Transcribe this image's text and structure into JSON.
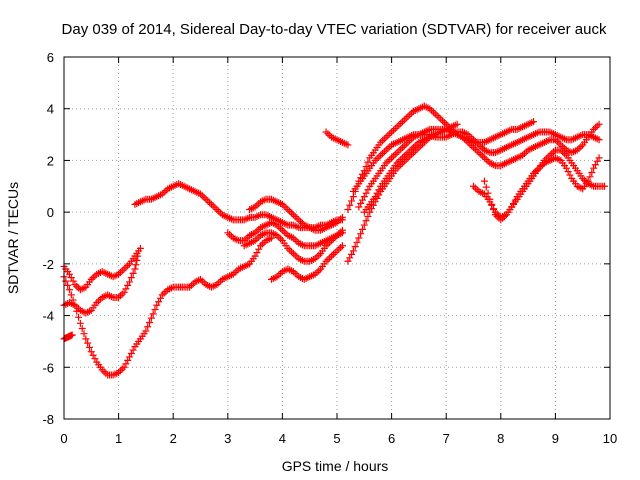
{
  "chart_data": {
    "type": "scatter",
    "title": "Day 039 of 2014, Sidereal Day-to-day VTEC variation (SDTVAR) for receiver auck",
    "xlabel": "GPS time / hours",
    "ylabel": "SDTVAR / TECUs",
    "xlim": [
      0,
      10
    ],
    "ylim": [
      -8,
      6
    ],
    "xticks": [
      0,
      1,
      2,
      3,
      4,
      5,
      6,
      7,
      8,
      9,
      10
    ],
    "yticks": [
      -8,
      -6,
      -4,
      -2,
      0,
      2,
      4,
      6
    ],
    "grid": true,
    "marker": "plus",
    "color": "#ff0000",
    "series": [
      {
        "x": [
          0.0,
          0.1,
          0.2,
          0.3,
          0.4,
          0.5,
          0.6,
          0.7,
          0.8,
          0.9,
          1.0,
          1.1,
          1.2,
          1.3,
          1.4
        ],
        "y": [
          -2.1,
          -2.4,
          -2.8,
          -3.0,
          -2.9,
          -2.6,
          -2.4,
          -2.3,
          -2.4,
          -2.5,
          -2.4,
          -2.2,
          -2.0,
          -1.7,
          -1.4
        ]
      },
      {
        "x": [
          0.0,
          0.1,
          0.2,
          0.3,
          0.4,
          0.5,
          0.6,
          0.7,
          0.8,
          0.9,
          1.0,
          1.1,
          1.2,
          1.3,
          1.35
        ],
        "y": [
          -3.6,
          -3.5,
          -3.6,
          -3.8,
          -3.9,
          -3.8,
          -3.5,
          -3.3,
          -3.2,
          -3.3,
          -3.3,
          -3.1,
          -2.7,
          -2.2,
          -1.7
        ]
      },
      {
        "x": [
          0.0,
          0.05,
          0.1,
          0.15
        ],
        "y": [
          -4.9,
          -4.85,
          -4.8,
          -4.75
        ]
      },
      {
        "x": [
          0.0,
          0.1,
          0.2,
          0.3,
          0.4,
          0.5,
          0.6,
          0.7,
          0.8,
          0.9,
          1.0,
          1.1,
          1.2,
          1.3,
          1.4,
          1.5,
          1.6,
          1.7,
          1.8,
          1.9,
          2.0,
          2.1,
          2.2,
          2.3,
          2.4,
          2.5,
          2.6,
          2.7,
          2.8,
          2.9,
          3.0,
          3.1,
          3.2,
          3.3,
          3.4,
          3.5,
          3.6,
          3.7,
          3.8
        ],
        "y": [
          -2.5,
          -3.0,
          -3.6,
          -4.3,
          -4.9,
          -5.4,
          -5.8,
          -6.1,
          -6.3,
          -6.3,
          -6.2,
          -6.0,
          -5.6,
          -5.2,
          -4.9,
          -4.6,
          -4.1,
          -3.6,
          -3.2,
          -3.0,
          -2.9,
          -2.9,
          -2.9,
          -2.9,
          -2.7,
          -2.6,
          -2.8,
          -2.9,
          -2.8,
          -2.6,
          -2.5,
          -2.4,
          -2.2,
          -2.1,
          -2.0,
          -1.7,
          -1.3,
          -1.1,
          -1.0
        ]
      },
      {
        "x": [
          1.3,
          1.4,
          1.5,
          1.6,
          1.7,
          1.8,
          1.9,
          2.0,
          2.1,
          2.2,
          2.3,
          2.4,
          2.5,
          2.6,
          2.7,
          2.8,
          2.9,
          3.0,
          3.1,
          3.2,
          3.3,
          3.4,
          3.5,
          3.6,
          3.7,
          3.8,
          3.9,
          4.0,
          4.1,
          4.2,
          4.3,
          4.4,
          4.5,
          4.6,
          4.7,
          4.8,
          4.9,
          5.0,
          5.1
        ],
        "y": [
          0.3,
          0.4,
          0.5,
          0.5,
          0.6,
          0.7,
          0.9,
          1.0,
          1.1,
          1.0,
          0.9,
          0.8,
          0.7,
          0.5,
          0.3,
          0.1,
          -0.1,
          -0.2,
          -0.3,
          -0.3,
          -0.3,
          -0.2,
          -0.2,
          -0.1,
          -0.1,
          -0.2,
          -0.3,
          -0.4,
          -0.5,
          -0.5,
          -0.6,
          -0.6,
          -0.6,
          -0.6,
          -0.5,
          -0.5,
          -0.4,
          -0.3,
          -0.3
        ]
      },
      {
        "x": [
          3.0,
          3.1,
          3.2,
          3.3,
          3.4,
          3.5,
          3.6,
          3.7,
          3.8,
          3.9,
          4.0,
          4.1,
          4.2,
          4.3,
          4.4,
          4.5,
          4.6,
          4.7,
          4.8,
          4.9,
          5.0,
          5.1
        ],
        "y": [
          -0.8,
          -1.0,
          -1.1,
          -1.1,
          -0.9,
          -0.8,
          -0.6,
          -0.5,
          -0.4,
          -0.5,
          -0.7,
          -0.9,
          -1.0,
          -1.2,
          -1.3,
          -1.3,
          -1.3,
          -1.2,
          -1.1,
          -1.0,
          -0.9,
          -0.8
        ]
      },
      {
        "x": [
          3.3,
          3.4,
          3.5,
          3.6,
          3.7,
          3.8,
          3.9,
          4.0,
          4.1,
          4.2,
          4.3,
          4.4,
          4.5,
          4.6,
          4.7,
          4.8,
          4.9,
          5.0,
          5.1
        ],
        "y": [
          -1.3,
          -1.2,
          -1.1,
          -0.9,
          -0.8,
          -0.8,
          -0.9,
          -1.1,
          -1.4,
          -1.6,
          -1.8,
          -1.9,
          -1.9,
          -1.8,
          -1.6,
          -1.3,
          -1.1,
          -0.9,
          -0.7
        ]
      },
      {
        "x": [
          3.4,
          3.5,
          3.6,
          3.7,
          3.8,
          3.9,
          4.0,
          4.1,
          4.2,
          4.3,
          4.4,
          4.5,
          4.6,
          4.7,
          4.8,
          4.9,
          5.0,
          5.1
        ],
        "y": [
          0.1,
          0.2,
          0.4,
          0.5,
          0.5,
          0.4,
          0.3,
          0.1,
          -0.1,
          -0.3,
          -0.5,
          -0.6,
          -0.7,
          -0.7,
          -0.6,
          -0.5,
          -0.4,
          -0.2
        ]
      },
      {
        "x": [
          3.8,
          3.9,
          4.0,
          4.1,
          4.2,
          4.3,
          4.4,
          4.5,
          4.6,
          4.7,
          4.8,
          4.9,
          5.0,
          5.1
        ],
        "y": [
          -2.6,
          -2.5,
          -2.3,
          -2.2,
          -2.3,
          -2.5,
          -2.6,
          -2.5,
          -2.4,
          -2.2,
          -1.9,
          -1.7,
          -1.5,
          -1.3
        ]
      },
      {
        "x": [
          4.8,
          4.9,
          5.0,
          5.1,
          5.2
        ],
        "y": [
          3.1,
          2.9,
          2.8,
          2.7,
          2.6
        ]
      },
      {
        "x": [
          5.2,
          5.3,
          5.4,
          5.5,
          5.6,
          5.7,
          5.8,
          5.9,
          6.0,
          6.1,
          6.2,
          6.3,
          6.4,
          6.5,
          6.6,
          6.7,
          6.8,
          6.9,
          7.0,
          7.1,
          7.2,
          7.3,
          7.4,
          7.5,
          7.6,
          7.7,
          7.8,
          7.9,
          8.0,
          8.1,
          8.2,
          8.3,
          8.4,
          8.5,
          8.6
        ],
        "y": [
          0.1,
          0.6,
          1.2,
          1.6,
          2.1,
          2.4,
          2.7,
          2.9,
          3.1,
          3.3,
          3.5,
          3.7,
          3.9,
          4.0,
          4.1,
          4.0,
          3.8,
          3.6,
          3.4,
          3.2,
          3.0,
          2.9,
          2.8,
          2.7,
          2.7,
          2.7,
          2.8,
          2.9,
          3.0,
          3.1,
          3.2,
          3.2,
          3.3,
          3.4,
          3.5
        ]
      },
      {
        "x": [
          5.3,
          5.4,
          5.5,
          5.6,
          5.7,
          5.8,
          5.9,
          6.0,
          6.1,
          6.2,
          6.3,
          6.4,
          6.5,
          6.6,
          6.7,
          6.8,
          6.9,
          7.0,
          7.1,
          7.2,
          7.3,
          7.4,
          7.5,
          7.6,
          7.7,
          7.8,
          7.9,
          8.0,
          8.1,
          8.2,
          8.3,
          8.4,
          8.5,
          8.6,
          8.7,
          8.8,
          8.9,
          9.0,
          9.1,
          9.2,
          9.3,
          9.4,
          9.5,
          9.6,
          9.7,
          9.8
        ],
        "y": [
          0.8,
          1.1,
          1.4,
          1.7,
          2.0,
          2.2,
          2.4,
          2.6,
          2.7,
          2.8,
          2.9,
          3.0,
          3.0,
          3.0,
          3.0,
          2.9,
          2.9,
          2.9,
          3.0,
          3.1,
          3.1,
          3.0,
          2.8,
          2.6,
          2.4,
          2.3,
          2.3,
          2.4,
          2.5,
          2.6,
          2.7,
          2.8,
          2.9,
          3.0,
          3.1,
          3.1,
          3.1,
          3.0,
          2.9,
          2.8,
          2.8,
          2.9,
          3.0,
          3.0,
          2.9,
          2.8
        ]
      },
      {
        "x": [
          5.4,
          5.5,
          5.6,
          5.7,
          5.8,
          5.9,
          6.0,
          6.1,
          6.2,
          6.3,
          6.4,
          6.5,
          6.6,
          6.7,
          6.8,
          6.9,
          7.0,
          7.1,
          7.2,
          7.3,
          7.4,
          7.5,
          7.6,
          7.7,
          7.8,
          7.9,
          8.0,
          8.1,
          8.2,
          8.3,
          8.4,
          8.5,
          8.6,
          8.7,
          8.8,
          8.9,
          9.0,
          9.1,
          9.2,
          9.3,
          9.4,
          9.5,
          9.6,
          9.7,
          9.8
        ],
        "y": [
          0.2,
          0.6,
          1.0,
          1.3,
          1.6,
          1.9,
          2.1,
          2.3,
          2.5,
          2.7,
          2.9,
          3.0,
          3.1,
          3.2,
          3.2,
          3.2,
          3.2,
          3.1,
          3.0,
          2.9,
          2.7,
          2.5,
          2.3,
          2.1,
          1.9,
          1.8,
          1.8,
          1.9,
          2.0,
          2.1,
          2.2,
          2.4,
          2.5,
          2.6,
          2.7,
          2.8,
          2.8,
          2.6,
          2.4,
          2.3,
          2.4,
          2.6,
          2.9,
          3.2,
          3.4
        ]
      },
      {
        "x": [
          5.2,
          5.3,
          5.4,
          5.5,
          5.6,
          5.7,
          5.8,
          5.9,
          6.0,
          6.1,
          6.2,
          6.3,
          6.4,
          6.5,
          6.6,
          6.7,
          6.8,
          6.9,
          7.0,
          7.1,
          7.2
        ],
        "y": [
          -1.9,
          -1.5,
          -1.0,
          -0.5,
          0.0,
          0.4,
          0.8,
          1.1,
          1.4,
          1.7,
          1.9,
          2.1,
          2.3,
          2.5,
          2.7,
          2.9,
          3.0,
          3.1,
          3.2,
          3.3,
          3.4
        ]
      },
      {
        "x": [
          5.5,
          5.6,
          5.7,
          5.8,
          5.9,
          6.0,
          6.1,
          6.2,
          6.3,
          6.4,
          6.5,
          6.6,
          6.7,
          6.8
        ],
        "y": [
          0.0,
          0.3,
          0.6,
          1.0,
          1.3,
          1.6,
          1.9,
          2.1,
          2.3,
          2.5,
          2.7,
          2.8,
          2.9,
          3.0
        ]
      },
      {
        "x": [
          7.5,
          7.6,
          7.7,
          7.8,
          7.9,
          8.0,
          8.1,
          8.2,
          8.3,
          8.4,
          8.5,
          8.6,
          8.7,
          8.8,
          8.9,
          9.0,
          9.1,
          9.2,
          9.3,
          9.4,
          9.5,
          9.6,
          9.7,
          9.8,
          9.9
        ],
        "y": [
          1.0,
          0.8,
          0.7,
          0.4,
          0.0,
          -0.2,
          -0.1,
          0.2,
          0.5,
          0.8,
          1.1,
          1.4,
          1.7,
          2.0,
          2.2,
          2.4,
          2.4,
          2.2,
          1.9,
          1.6,
          1.3,
          1.1,
          1.0,
          1.0,
          1.0
        ]
      },
      {
        "x": [
          7.7,
          7.8,
          7.9,
          8.0,
          8.1,
          8.2,
          8.3,
          8.4,
          8.5,
          8.6,
          8.7,
          8.8,
          8.9,
          9.0,
          9.1,
          9.2,
          9.3,
          9.4,
          9.5,
          9.6,
          9.7,
          9.8
        ],
        "y": [
          1.2,
          0.5,
          -0.1,
          -0.3,
          -0.1,
          0.2,
          0.6,
          0.9,
          1.2,
          1.5,
          1.7,
          1.9,
          2.0,
          2.1,
          2.0,
          1.7,
          1.3,
          1.0,
          0.9,
          1.2,
          1.7,
          2.1
        ]
      }
    ]
  }
}
